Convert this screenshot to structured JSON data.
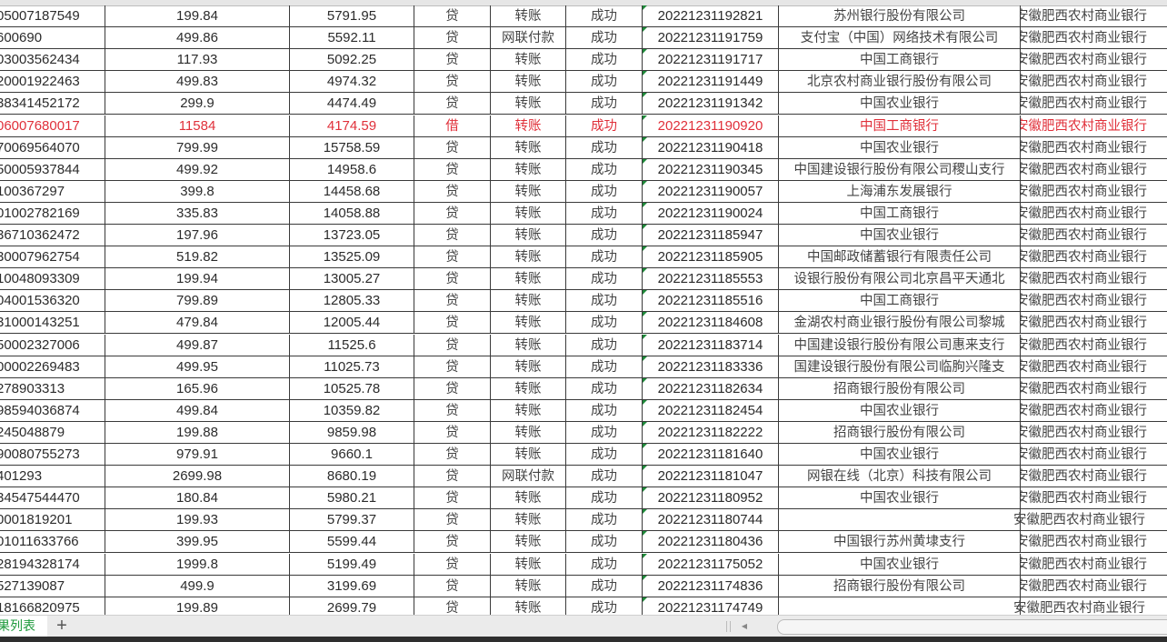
{
  "colors": {
    "text": "#2b2b2b",
    "highlight_row": "#e0303a",
    "sheet_tab": "#1e9a3c"
  },
  "rows": [
    {
      "account": "05007187549",
      "amount": "199.84",
      "balance": "5791.95",
      "dc": "贷",
      "type": "转账",
      "status": "成功",
      "serial": "20221231192821",
      "counterparty_bank": "苏州银行股份有限公司",
      "bank": "安徽肥西农村商业银行"
    },
    {
      "account": "600690",
      "amount": "499.86",
      "balance": "5592.11",
      "dc": "贷",
      "type": "网联付款",
      "status": "成功",
      "serial": "20221231191759",
      "counterparty_bank": "支付宝（中国）网络技术有限公司",
      "bank": "安徽肥西农村商业银行"
    },
    {
      "account": "03003562434",
      "amount": "117.93",
      "balance": "5092.25",
      "dc": "贷",
      "type": "转账",
      "status": "成功",
      "serial": "20221231191717",
      "counterparty_bank": "中国工商银行",
      "bank": "安徽肥西农村商业银行"
    },
    {
      "account": "20001922463",
      "amount": "499.83",
      "balance": "4974.32",
      "dc": "贷",
      "type": "转账",
      "status": "成功",
      "serial": "20221231191449",
      "counterparty_bank": "北京农村商业银行股份有限公司",
      "bank": "安徽肥西农村商业银行"
    },
    {
      "account": "38341452172",
      "amount": "299.9",
      "balance": "4474.49",
      "dc": "贷",
      "type": "转账",
      "status": "成功",
      "serial": "20221231191342",
      "counterparty_bank": "中国农业银行",
      "bank": "安徽肥西农村商业银行"
    },
    {
      "account": "06007680017",
      "amount": "11584",
      "balance": "4174.59",
      "dc": "借",
      "type": "转账",
      "status": "成功",
      "serial": "20221231190920",
      "counterparty_bank": "中国工商银行",
      "bank": "安徽肥西农村商业银行",
      "highlight": true
    },
    {
      "account": "70069564070",
      "amount": "799.99",
      "balance": "15758.59",
      "dc": "贷",
      "type": "转账",
      "status": "成功",
      "serial": "20221231190418",
      "counterparty_bank": "中国农业银行",
      "bank": "安徽肥西农村商业银行"
    },
    {
      "account": "50005937844",
      "amount": "499.92",
      "balance": "14958.6",
      "dc": "贷",
      "type": "转账",
      "status": "成功",
      "serial": "20221231190345",
      "counterparty_bank": "中国建设银行股份有限公司稷山支行",
      "bank": "安徽肥西农村商业银行"
    },
    {
      "account": "100367297",
      "amount": "399.8",
      "balance": "14458.68",
      "dc": "贷",
      "type": "转账",
      "status": "成功",
      "serial": "20221231190057",
      "counterparty_bank": "上海浦东发展银行",
      "bank": "安徽肥西农村商业银行"
    },
    {
      "account": "01002782169",
      "amount": "335.83",
      "balance": "14058.88",
      "dc": "贷",
      "type": "转账",
      "status": "成功",
      "serial": "20221231190024",
      "counterparty_bank": "中国工商银行",
      "bank": "安徽肥西农村商业银行"
    },
    {
      "account": "36710362472",
      "amount": "197.96",
      "balance": "13723.05",
      "dc": "贷",
      "type": "转账",
      "status": "成功",
      "serial": "20221231185947",
      "counterparty_bank": "中国农业银行",
      "bank": "安徽肥西农村商业银行"
    },
    {
      "account": "30007962754",
      "amount": "519.82",
      "balance": "13525.09",
      "dc": "贷",
      "type": "转账",
      "status": "成功",
      "serial": "20221231185905",
      "counterparty_bank": "中国邮政储蓄银行有限责任公司",
      "bank": "安徽肥西农村商业银行"
    },
    {
      "account": "10048093309",
      "amount": "199.94",
      "balance": "13005.27",
      "dc": "贷",
      "type": "转账",
      "status": "成功",
      "serial": "20221231185553",
      "counterparty_bank": "设银行股份有限公司北京昌平天通北",
      "bank": "安徽肥西农村商业银行"
    },
    {
      "account": "04001536320",
      "amount": "799.89",
      "balance": "12805.33",
      "dc": "贷",
      "type": "转账",
      "status": "成功",
      "serial": "20221231185516",
      "counterparty_bank": "中国工商银行",
      "bank": "安徽肥西农村商业银行"
    },
    {
      "account": "31000143251",
      "amount": "479.84",
      "balance": "12005.44",
      "dc": "贷",
      "type": "转账",
      "status": "成功",
      "serial": "20221231184608",
      "counterparty_bank": "金湖农村商业银行股份有限公司黎城",
      "bank": "安徽肥西农村商业银行"
    },
    {
      "account": "50002327006",
      "amount": "499.87",
      "balance": "11525.6",
      "dc": "贷",
      "type": "转账",
      "status": "成功",
      "serial": "20221231183714",
      "counterparty_bank": "中国建设银行股份有限公司惠来支行",
      "bank": "安徽肥西农村商业银行"
    },
    {
      "account": "00002269483",
      "amount": "499.95",
      "balance": "11025.73",
      "dc": "贷",
      "type": "转账",
      "status": "成功",
      "serial": "20221231183336",
      "counterparty_bank": "国建设银行股份有限公司临朐兴隆支",
      "bank": "安徽肥西农村商业银行"
    },
    {
      "account": "278903313",
      "amount": "165.96",
      "balance": "10525.78",
      "dc": "贷",
      "type": "转账",
      "status": "成功",
      "serial": "20221231182634",
      "counterparty_bank": "招商银行股份有限公司",
      "bank": "安徽肥西农村商业银行"
    },
    {
      "account": "98594036874",
      "amount": "499.84",
      "balance": "10359.82",
      "dc": "贷",
      "type": "转账",
      "status": "成功",
      "serial": "20221231182454",
      "counterparty_bank": "中国农业银行",
      "bank": "安徽肥西农村商业银行"
    },
    {
      "account": "245048879",
      "amount": "199.88",
      "balance": "9859.98",
      "dc": "贷",
      "type": "转账",
      "status": "成功",
      "serial": "20221231182222",
      "counterparty_bank": "招商银行股份有限公司",
      "bank": "安徽肥西农村商业银行"
    },
    {
      "account": "90080755273",
      "amount": "979.91",
      "balance": "9660.1",
      "dc": "贷",
      "type": "转账",
      "status": "成功",
      "serial": "20221231181640",
      "counterparty_bank": "中国农业银行",
      "bank": "安徽肥西农村商业银行"
    },
    {
      "account": "401293",
      "amount": "2699.98",
      "balance": "8680.19",
      "dc": "贷",
      "type": "网联付款",
      "status": "成功",
      "serial": "20221231181047",
      "counterparty_bank": "网银在线（北京）科技有限公司",
      "bank": "安徽肥西农村商业银行"
    },
    {
      "account": "34547544470",
      "amount": "180.84",
      "balance": "5980.21",
      "dc": "贷",
      "type": "转账",
      "status": "成功",
      "serial": "20221231180952",
      "counterparty_bank": "中国农业银行",
      "bank": "安徽肥西农村商业银行"
    },
    {
      "account": "0001819201",
      "amount": "199.93",
      "balance": "5799.37",
      "dc": "贷",
      "type": "转账",
      "status": "成功",
      "serial": "20221231180744",
      "counterparty_bank": "",
      "bank": "安徽肥西农村商业银行"
    },
    {
      "account": "01011633766",
      "amount": "399.95",
      "balance": "5599.44",
      "dc": "贷",
      "type": "转账",
      "status": "成功",
      "serial": "20221231180436",
      "counterparty_bank": "中国银行苏州黄埭支行",
      "bank": "安徽肥西农村商业银行"
    },
    {
      "account": "28194328174",
      "amount": "1999.8",
      "balance": "5199.49",
      "dc": "贷",
      "type": "转账",
      "status": "成功",
      "serial": "20221231175052",
      "counterparty_bank": "中国农业银行",
      "bank": "安徽肥西农村商业银行"
    },
    {
      "account": "527139087",
      "amount": "499.9",
      "balance": "3199.69",
      "dc": "贷",
      "type": "转账",
      "status": "成功",
      "serial": "20221231174836",
      "counterparty_bank": "招商银行股份有限公司",
      "bank": "安徽肥西农村商业银行"
    },
    {
      "account": "18166820975",
      "amount": "199.89",
      "balance": "2699.79",
      "dc": "贷",
      "type": "转账",
      "status": "成功",
      "serial": "20221231174749",
      "counterparty_bank": "",
      "bank": "安徽肥西农村商业银行"
    }
  ],
  "sheet_bar": {
    "active_sheet": "果列表",
    "add_sheet_icon": "plus-icon",
    "scroll_left_icon": "triangle-left-icon"
  }
}
